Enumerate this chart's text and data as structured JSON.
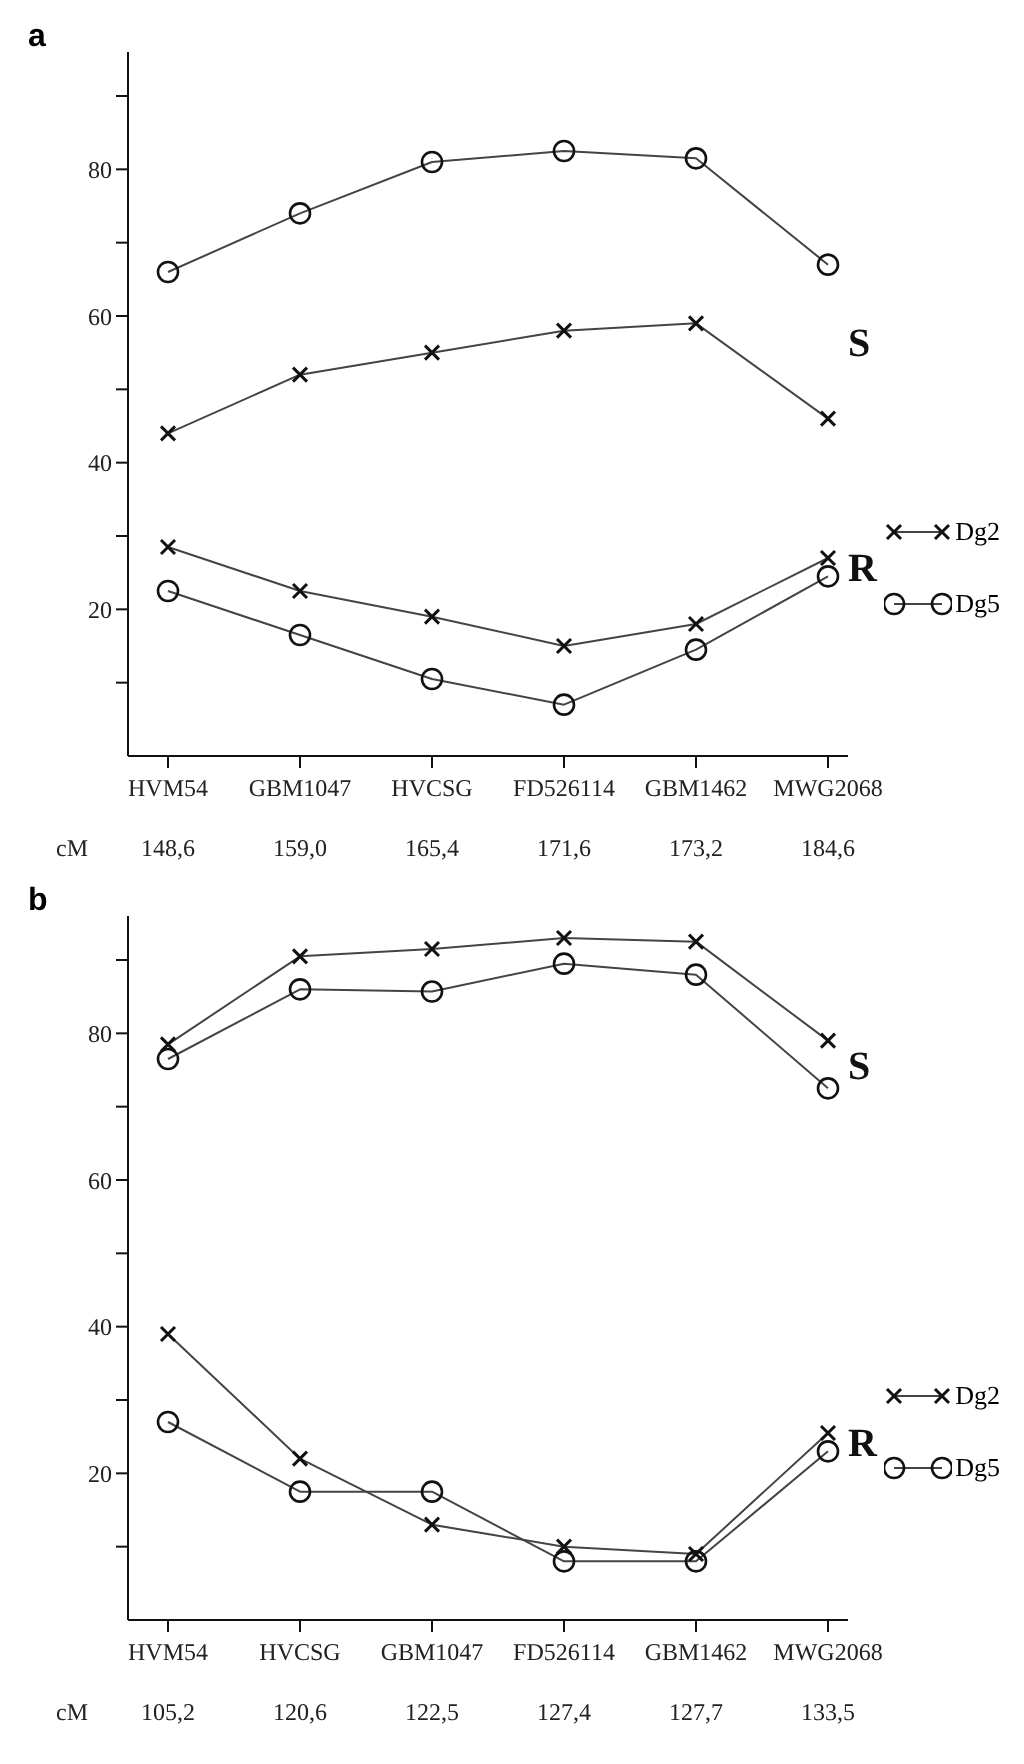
{
  "chart_data": [
    {
      "type": "line",
      "title": "a",
      "categories": [
        "HVM54",
        "GBM1047",
        "HVCSG",
        "FD526114",
        "GBM1462",
        "MWG2068"
      ],
      "series": [
        {
          "color": "#444444",
          "marker": "circle",
          "values": [
            66,
            74,
            81,
            82.5,
            81.5,
            67
          ]
        },
        {
          "color": "#444444",
          "marker": "cross",
          "values": [
            44,
            52,
            55,
            58,
            59,
            46
          ]
        },
        {
          "name": "Dg2",
          "color": "#444444",
          "marker": "cross",
          "values": [
            28.5,
            22.5,
            19,
            15,
            18,
            27
          ]
        },
        {
          "name": "Dg5",
          "color": "#444444",
          "marker": "circle",
          "values": [
            22.5,
            16.5,
            10.5,
            7,
            14.5,
            24.5
          ]
        }
      ],
      "ylim": [
        0,
        96
      ],
      "yticks": [
        {
          "value": 10,
          "label": null
        },
        20,
        {
          "value": 30,
          "label": null
        },
        40,
        {
          "value": 50,
          "label": null
        },
        60,
        {
          "value": 70,
          "label": null
        },
        80,
        {
          "value": 90,
          "label": null
        }
      ],
      "legend": "right",
      "grid": false,
      "annotations": [
        "cM",
        "148,6",
        "159,0",
        "165,4",
        "171,6",
        "173,2",
        "184,6",
        "S",
        "R"
      ]
    },
    {
      "type": "line",
      "title": "b",
      "categories": [
        "HVM54",
        "HVCSG",
        "GBM1047",
        "FD526114",
        "GBM1462",
        "MWG2068"
      ],
      "series": [
        {
          "color": "#444444",
          "marker": "cross",
          "values": [
            78.5,
            90.5,
            91.5,
            93,
            92.5,
            79
          ]
        },
        {
          "color": "#444444",
          "marker": "circle",
          "values": [
            76.5,
            86,
            85.7,
            89.5,
            88,
            72.5
          ]
        },
        {
          "name": "Dg2",
          "color": "#444444",
          "marker": "cross",
          "values": [
            39,
            22,
            13,
            10,
            9,
            25.5
          ]
        },
        {
          "name": "Dg5",
          "color": "#444444",
          "marker": "circle",
          "values": [
            27,
            17.5,
            17.5,
            8,
            8,
            23
          ]
        }
      ],
      "ylim": [
        0,
        96
      ],
      "yticks": [
        {
          "value": 10,
          "label": null
        },
        20,
        {
          "value": 30,
          "label": null
        },
        40,
        {
          "value": 50,
          "label": null
        },
        60,
        {
          "value": 70,
          "label": null
        },
        80,
        {
          "value": 90,
          "label": null
        }
      ],
      "legend": "right",
      "grid": false,
      "annotations": [
        "cM",
        "105,2",
        "120,6",
        "122,5",
        "127,4",
        "127,7",
        "133,5",
        "S",
        "R"
      ]
    }
  ]
}
